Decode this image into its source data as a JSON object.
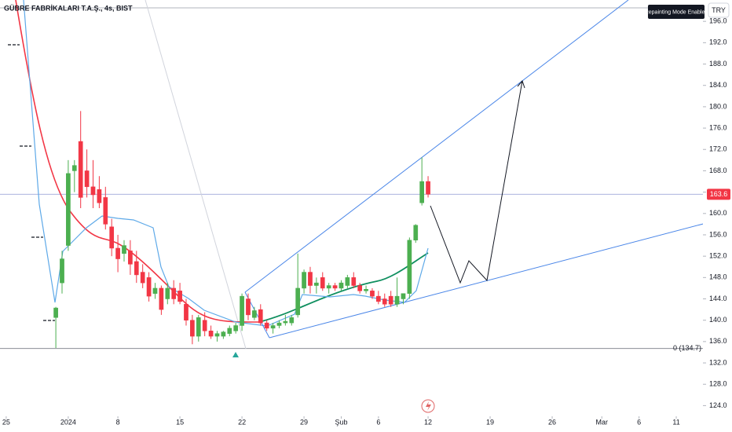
{
  "header": {
    "symbol": "GÜBRE FABRİKALARI T.A.Ş., 4s, BIST",
    "currency": "TRY",
    "badge": "Repainting Mode Enabled"
  },
  "chart_data": {
    "type": "candlestick",
    "up_color": "#4caf50",
    "down_color": "#f23645",
    "x": [
      8,
      9,
      10,
      11,
      12,
      13,
      14,
      15,
      16,
      17,
      18,
      19,
      20,
      21,
      22,
      23,
      24,
      25,
      26,
      27,
      28,
      29,
      30,
      31,
      32,
      33,
      34,
      35,
      36,
      37,
      38,
      39,
      40,
      41,
      42,
      43,
      44,
      45,
      46,
      47,
      48,
      49,
      50,
      51,
      52,
      53,
      54,
      55,
      56,
      57,
      58,
      59,
      60,
      61,
      62,
      63,
      64,
      65,
      66,
      67,
      68
    ],
    "ohlc": [
      [
        140.5,
        142.5,
        134.8,
        142.3
      ],
      [
        147,
        153,
        145,
        151.5
      ],
      [
        154,
        170,
        153,
        167.5
      ],
      [
        168,
        170,
        164,
        169
      ],
      [
        173.5,
        179.2,
        161,
        163
      ],
      [
        168,
        172,
        163,
        165
      ],
      [
        165,
        170,
        161,
        163.5
      ],
      [
        164.5,
        167,
        161,
        162
      ],
      [
        163,
        165,
        157,
        158
      ],
      [
        157.5,
        159,
        152,
        153.5
      ],
      [
        153.5,
        156,
        149,
        151.5
      ],
      [
        152.5,
        155,
        151,
        154
      ],
      [
        153,
        155,
        148.5,
        150.5
      ],
      [
        151,
        153,
        147,
        148.5
      ],
      [
        149,
        150.5,
        146,
        147
      ],
      [
        148,
        149,
        143.5,
        144.5
      ],
      [
        145,
        147,
        144,
        146
      ],
      [
        146,
        146.5,
        141,
        142
      ],
      [
        144,
        147,
        143,
        146
      ],
      [
        146,
        147.5,
        143,
        144
      ],
      [
        145.5,
        147,
        143,
        143.5
      ],
      [
        143,
        144,
        139,
        140
      ],
      [
        140,
        141,
        135.5,
        137
      ],
      [
        137,
        141,
        136,
        140.5
      ],
      [
        140,
        141.5,
        137,
        138
      ],
      [
        138,
        139,
        136.5,
        137
      ],
      [
        137,
        138,
        136,
        137.5
      ],
      [
        137,
        138,
        136.5,
        137.8
      ],
      [
        137.5,
        139,
        137,
        138.5
      ],
      [
        138,
        139.5,
        137.5,
        139
      ],
      [
        139,
        145,
        138,
        144.5
      ],
      [
        144,
        145,
        140,
        141
      ],
      [
        140.5,
        142.5,
        140,
        141.8
      ],
      [
        142,
        143,
        139,
        139.5
      ],
      [
        139.5,
        140,
        138,
        138.5
      ],
      [
        138.5,
        139.5,
        137.5,
        139
      ],
      [
        139,
        140,
        138.5,
        139.5
      ],
      [
        139.5,
        141,
        139,
        139.8
      ],
      [
        139.5,
        141,
        139,
        140.5
      ],
      [
        141,
        152.5,
        140.5,
        146
      ],
      [
        146,
        149.5,
        145,
        149
      ],
      [
        149,
        150,
        145,
        146.5
      ],
      [
        146.5,
        148,
        145,
        147
      ],
      [
        148,
        149,
        145.5,
        146
      ],
      [
        146,
        147,
        145,
        146.5
      ],
      [
        146.5,
        147,
        145.5,
        146
      ],
      [
        146,
        147.5,
        145.5,
        147
      ],
      [
        146.5,
        148.5,
        146,
        148
      ],
      [
        148,
        149,
        146,
        146.5
      ],
      [
        146.5,
        147,
        145,
        145.5
      ],
      [
        145.5,
        146.5,
        145,
        145.8
      ],
      [
        145.5,
        146,
        144,
        144.5
      ],
      [
        144.5,
        145.5,
        143,
        143.5
      ],
      [
        144,
        145,
        142.5,
        143
      ],
      [
        144.5,
        145.5,
        142.5,
        143
      ],
      [
        143,
        148,
        142.5,
        144.5
      ],
      [
        144,
        145,
        143,
        145
      ],
      [
        145,
        155.5,
        144,
        155
      ],
      [
        155,
        158,
        154.5,
        157.8
      ],
      [
        162,
        170.5,
        161.5,
        166
      ],
      [
        166,
        167,
        163,
        163.6
      ]
    ],
    "last_price": 163.6,
    "last_price_color": "#f23645",
    "level": 134.7,
    "level_label": "0 (134.7)",
    "ylim": [
      122,
      200
    ],
    "yticks": [
      {
        "value": 124,
        "label": "124.0"
      },
      {
        "value": 128,
        "label": "128.0"
      },
      {
        "value": 132,
        "label": "132.0"
      },
      {
        "value": 136,
        "label": "136.0"
      },
      {
        "value": 140,
        "label": "140.0"
      },
      {
        "value": 144,
        "label": "144.0"
      },
      {
        "value": 148,
        "label": "148.0"
      },
      {
        "value": 152,
        "label": "152.0"
      },
      {
        "value": 156,
        "label": "156.0"
      },
      {
        "value": 160,
        "label": "160.0"
      },
      {
        "value": 164,
        "label": "164.0"
      },
      {
        "value": 168,
        "label": "168.0"
      },
      {
        "value": 172,
        "label": "172.0"
      },
      {
        "value": 176,
        "label": "176.0"
      },
      {
        "value": 180,
        "label": "180.0"
      },
      {
        "value": 184,
        "label": "184.0"
      },
      {
        "value": 188,
        "label": "188.0"
      },
      {
        "value": 192,
        "label": "192.0"
      },
      {
        "value": 196,
        "label": "196.0"
      }
    ],
    "xlim": [
      -1,
      112.3
    ],
    "xticks": [
      {
        "value": 0,
        "label": "25"
      },
      {
        "value": 10,
        "label": "2024"
      },
      {
        "value": 18,
        "label": "8"
      },
      {
        "value": 28,
        "label": "15"
      },
      {
        "value": 38,
        "label": "22"
      },
      {
        "value": 48,
        "label": "29"
      },
      {
        "value": 54,
        "label": "Şub"
      },
      {
        "value": 60,
        "label": "6"
      },
      {
        "value": 68,
        "label": "12"
      },
      {
        "value": 78,
        "label": "19"
      },
      {
        "value": 88,
        "label": "26"
      },
      {
        "value": 96,
        "label": "Mar"
      },
      {
        "value": 102,
        "label": "6"
      },
      {
        "value": 108,
        "label": "11"
      }
    ]
  }
}
